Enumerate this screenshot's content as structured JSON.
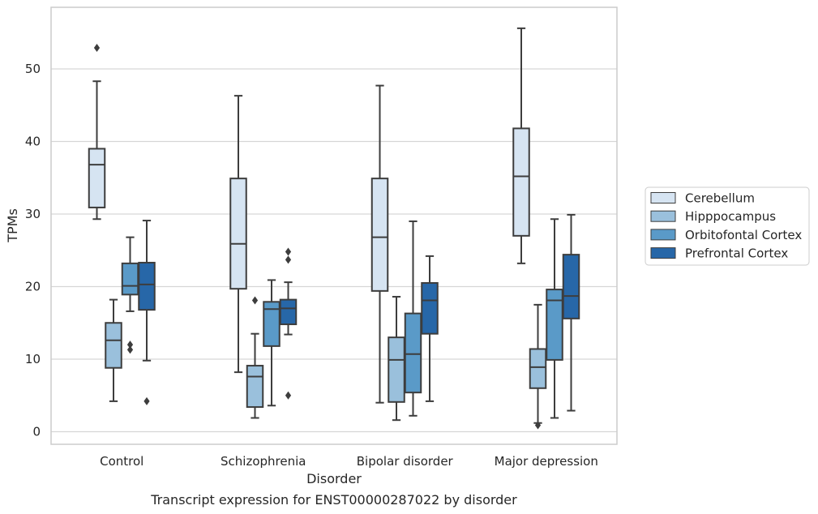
{
  "chart_data": {
    "type": "box",
    "xlabel": "Disorder",
    "ylabel": "TPMs",
    "caption": "Transcript expression for ENST00000287022 by disorder",
    "ylim": [
      -1.7,
      58.5
    ],
    "yticks": [
      0,
      10,
      20,
      30,
      40,
      50
    ],
    "grid": "horizontal",
    "legend_position": "right",
    "categories": [
      "Control",
      "Schizophrenia",
      "Bipolar disorder",
      "Major depression"
    ],
    "series": [
      {
        "name": "Cerebellum",
        "color": "#d6e4f2",
        "boxes": [
          {
            "whislo": 29.3,
            "q1": 30.9,
            "med": 36.8,
            "q3": 39.0,
            "whishi": 48.3,
            "fliers": [
              52.9
            ]
          },
          {
            "whislo": 8.2,
            "q1": 19.7,
            "med": 25.9,
            "q3": 34.9,
            "whishi": 46.3,
            "fliers": []
          },
          {
            "whislo": 4.0,
            "q1": 19.4,
            "med": 26.8,
            "q3": 34.9,
            "whishi": 47.7,
            "fliers": []
          },
          {
            "whislo": 23.2,
            "q1": 27.0,
            "med": 35.2,
            "q3": 41.8,
            "whishi": 55.6,
            "fliers": []
          }
        ]
      },
      {
        "name": "Hipppocampus",
        "color": "#9ac0dc",
        "boxes": [
          {
            "whislo": 4.2,
            "q1": 8.8,
            "med": 12.6,
            "q3": 15.0,
            "whishi": 18.2,
            "fliers": []
          },
          {
            "whislo": 1.9,
            "q1": 3.4,
            "med": 7.6,
            "q3": 9.1,
            "whishi": 13.5,
            "fliers": [
              18.1
            ]
          },
          {
            "whislo": 1.6,
            "q1": 4.1,
            "med": 9.9,
            "q3": 13.0,
            "whishi": 18.6,
            "fliers": []
          },
          {
            "whislo": 1.2,
            "q1": 6.0,
            "med": 8.9,
            "q3": 11.4,
            "whishi": 17.5,
            "fliers": [
              0.9
            ]
          }
        ]
      },
      {
        "name": "Orbitofontal Cortex",
        "color": "#5a9ac8",
        "boxes": [
          {
            "whislo": 16.6,
            "q1": 18.9,
            "med": 20.1,
            "q3": 23.2,
            "whishi": 26.8,
            "fliers": [
              12.0,
              11.3
            ]
          },
          {
            "whislo": 3.6,
            "q1": 11.8,
            "med": 16.9,
            "q3": 17.9,
            "whishi": 20.9,
            "fliers": []
          },
          {
            "whislo": 2.2,
            "q1": 5.4,
            "med": 10.7,
            "q3": 16.3,
            "whishi": 29.0,
            "fliers": []
          },
          {
            "whislo": 1.9,
            "q1": 9.9,
            "med": 18.1,
            "q3": 19.6,
            "whishi": 29.3,
            "fliers": []
          }
        ]
      },
      {
        "name": "Prefrontal Cortex",
        "color": "#2767a8",
        "boxes": [
          {
            "whislo": 9.8,
            "q1": 16.8,
            "med": 20.3,
            "q3": 23.3,
            "whishi": 29.1,
            "fliers": [
              4.2
            ]
          },
          {
            "whislo": 13.4,
            "q1": 14.8,
            "med": 17.0,
            "q3": 18.2,
            "whishi": 20.6,
            "fliers": [
              24.8,
              23.7,
              5.0
            ]
          },
          {
            "whislo": 4.2,
            "q1": 13.5,
            "med": 18.1,
            "q3": 20.5,
            "whishi": 24.2,
            "fliers": []
          },
          {
            "whislo": 2.9,
            "q1": 15.6,
            "med": 18.7,
            "q3": 24.4,
            "whishi": 29.9,
            "fliers": []
          }
        ]
      }
    ]
  }
}
